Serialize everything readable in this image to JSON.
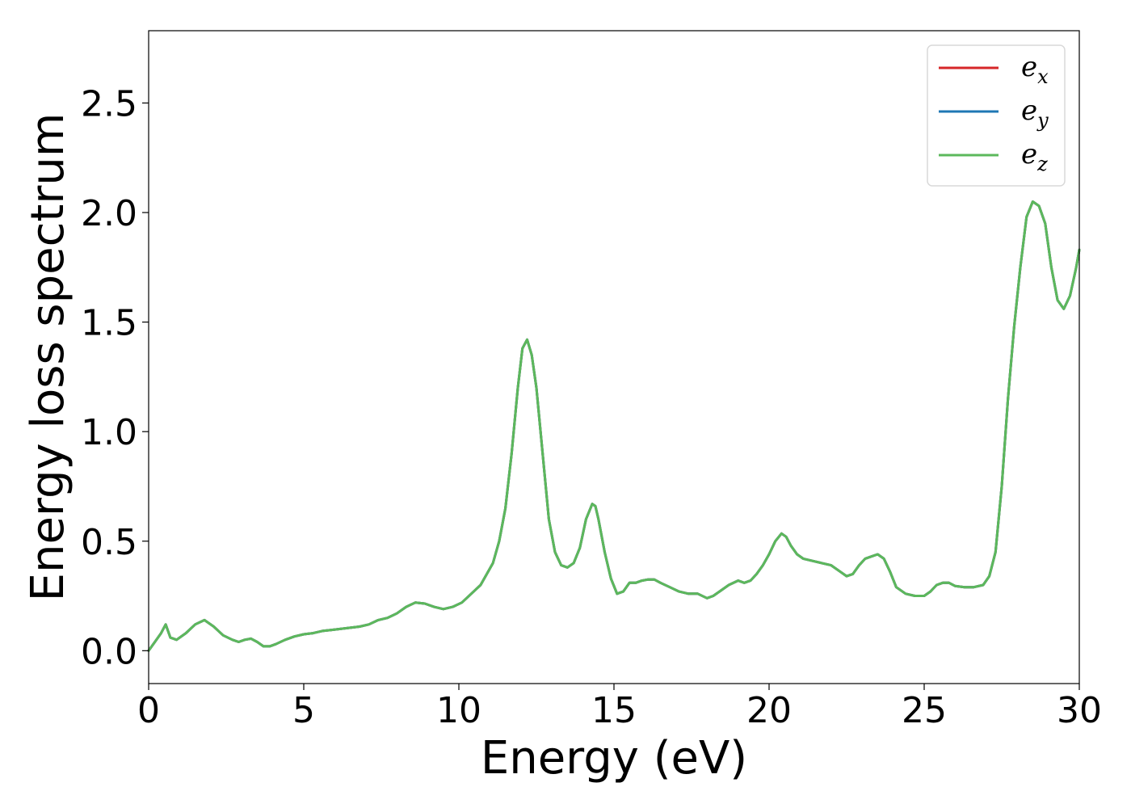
{
  "chart_data": {
    "type": "line",
    "title": "",
    "xlabel": "Energy (eV)",
    "ylabel": "Energy loss spectrum",
    "xlim": [
      0,
      30
    ],
    "ylim": [
      -0.15,
      2.83
    ],
    "xticks": [
      "0",
      "5",
      "10",
      "15",
      "20",
      "25",
      "30"
    ],
    "xtick_values": [
      0,
      5,
      10,
      15,
      20,
      25,
      30
    ],
    "yticks": [
      "0.0",
      "0.5",
      "1.0",
      "1.5",
      "2.0",
      "2.5"
    ],
    "ytick_values": [
      0.0,
      0.5,
      1.0,
      1.5,
      2.0,
      2.5
    ],
    "grid": false,
    "legend_placement": "top-right",
    "series": [
      {
        "name": "e_x",
        "label_main": "e",
        "label_sub": "x",
        "color": "#d62728",
        "x": [
          0,
          0.2,
          0.4,
          0.55,
          0.7,
          0.9,
          1.2,
          1.5,
          1.8,
          2.1,
          2.4,
          2.7,
          2.9,
          3.1,
          3.3,
          3.5,
          3.7,
          3.9,
          4.1,
          4.4,
          4.7,
          5.0,
          5.3,
          5.6,
          5.9,
          6.2,
          6.5,
          6.8,
          7.1,
          7.4,
          7.7,
          8.0,
          8.3,
          8.6,
          8.9,
          9.2,
          9.5,
          9.8,
          10.1,
          10.4,
          10.7,
          10.9,
          11.1,
          11.3,
          11.5,
          11.7,
          11.9,
          12.05,
          12.2,
          12.35,
          12.5,
          12.7,
          12.9,
          13.1,
          13.3,
          13.5,
          13.7,
          13.9,
          14.1,
          14.3,
          14.4,
          14.5,
          14.7,
          14.9,
          15.1,
          15.3,
          15.5,
          15.7,
          15.9,
          16.1,
          16.3,
          16.5,
          16.8,
          17.1,
          17.4,
          17.7,
          18.0,
          18.2,
          18.4,
          18.7,
          19.0,
          19.2,
          19.4,
          19.6,
          19.8,
          20.0,
          20.2,
          20.4,
          20.55,
          20.7,
          20.9,
          21.1,
          21.4,
          21.7,
          22.0,
          22.3,
          22.5,
          22.7,
          22.9,
          23.1,
          23.3,
          23.5,
          23.7,
          23.9,
          24.1,
          24.4,
          24.7,
          25.0,
          25.2,
          25.4,
          25.6,
          25.8,
          26.0,
          26.3,
          26.6,
          26.9,
          27.1,
          27.3,
          27.5,
          27.7,
          27.9,
          28.1,
          28.3,
          28.5,
          28.7,
          28.9,
          29.1,
          29.3,
          29.5,
          29.7,
          29.9,
          30.0
        ],
        "y": [
          0.0,
          0.04,
          0.08,
          0.12,
          0.06,
          0.05,
          0.08,
          0.12,
          0.14,
          0.11,
          0.07,
          0.05,
          0.04,
          0.05,
          0.055,
          0.04,
          0.02,
          0.02,
          0.03,
          0.05,
          0.065,
          0.075,
          0.08,
          0.09,
          0.095,
          0.1,
          0.105,
          0.11,
          0.12,
          0.14,
          0.15,
          0.17,
          0.2,
          0.22,
          0.215,
          0.2,
          0.19,
          0.2,
          0.22,
          0.26,
          0.3,
          0.35,
          0.4,
          0.5,
          0.65,
          0.9,
          1.2,
          1.38,
          1.42,
          1.35,
          1.2,
          0.9,
          0.6,
          0.45,
          0.39,
          0.38,
          0.4,
          0.47,
          0.6,
          0.67,
          0.66,
          0.6,
          0.45,
          0.33,
          0.26,
          0.27,
          0.31,
          0.31,
          0.32,
          0.325,
          0.325,
          0.31,
          0.29,
          0.27,
          0.26,
          0.26,
          0.24,
          0.25,
          0.27,
          0.3,
          0.32,
          0.31,
          0.32,
          0.35,
          0.39,
          0.44,
          0.5,
          0.535,
          0.52,
          0.48,
          0.44,
          0.42,
          0.41,
          0.4,
          0.39,
          0.36,
          0.34,
          0.35,
          0.39,
          0.42,
          0.43,
          0.44,
          0.42,
          0.36,
          0.29,
          0.26,
          0.25,
          0.25,
          0.27,
          0.3,
          0.31,
          0.31,
          0.295,
          0.29,
          0.29,
          0.3,
          0.34,
          0.45,
          0.75,
          1.15,
          1.48,
          1.75,
          1.98,
          2.05,
          2.03,
          1.95,
          1.75,
          1.6,
          1.56,
          1.62,
          1.75,
          1.83
        ]
      },
      {
        "name": "e_y",
        "label_main": "e",
        "label_sub": "y",
        "color": "#1f77b4",
        "x": [
          0,
          0.2,
          0.4,
          0.55,
          0.7,
          0.9,
          1.2,
          1.5,
          1.8,
          2.1,
          2.4,
          2.7,
          2.9,
          3.1,
          3.3,
          3.5,
          3.7,
          3.9,
          4.1,
          4.4,
          4.7,
          5.0,
          5.3,
          5.6,
          5.9,
          6.2,
          6.5,
          6.8,
          7.1,
          7.4,
          7.7,
          8.0,
          8.3,
          8.6,
          8.9,
          9.2,
          9.5,
          9.8,
          10.1,
          10.4,
          10.7,
          10.9,
          11.1,
          11.3,
          11.5,
          11.7,
          11.9,
          12.05,
          12.2,
          12.35,
          12.5,
          12.7,
          12.9,
          13.1,
          13.3,
          13.5,
          13.7,
          13.9,
          14.1,
          14.3,
          14.4,
          14.5,
          14.7,
          14.9,
          15.1,
          15.3,
          15.5,
          15.7,
          15.9,
          16.1,
          16.3,
          16.5,
          16.8,
          17.1,
          17.4,
          17.7,
          18.0,
          18.2,
          18.4,
          18.7,
          19.0,
          19.2,
          19.4,
          19.6,
          19.8,
          20.0,
          20.2,
          20.4,
          20.55,
          20.7,
          20.9,
          21.1,
          21.4,
          21.7,
          22.0,
          22.3,
          22.5,
          22.7,
          22.9,
          23.1,
          23.3,
          23.5,
          23.7,
          23.9,
          24.1,
          24.4,
          24.7,
          25.0,
          25.2,
          25.4,
          25.6,
          25.8,
          26.0,
          26.3,
          26.6,
          26.9,
          27.1,
          27.3,
          27.5,
          27.7,
          27.9,
          28.1,
          28.3,
          28.5,
          28.7,
          28.9,
          29.1,
          29.3,
          29.5,
          29.7,
          29.9,
          30.0
        ],
        "y": [
          0.0,
          0.04,
          0.08,
          0.12,
          0.06,
          0.05,
          0.08,
          0.12,
          0.14,
          0.11,
          0.07,
          0.05,
          0.04,
          0.05,
          0.055,
          0.04,
          0.02,
          0.02,
          0.03,
          0.05,
          0.065,
          0.075,
          0.08,
          0.09,
          0.095,
          0.1,
          0.105,
          0.11,
          0.12,
          0.14,
          0.15,
          0.17,
          0.2,
          0.22,
          0.215,
          0.2,
          0.19,
          0.2,
          0.22,
          0.26,
          0.3,
          0.35,
          0.4,
          0.5,
          0.65,
          0.9,
          1.2,
          1.38,
          1.42,
          1.35,
          1.2,
          0.9,
          0.6,
          0.45,
          0.39,
          0.38,
          0.4,
          0.47,
          0.6,
          0.67,
          0.66,
          0.6,
          0.45,
          0.33,
          0.26,
          0.27,
          0.31,
          0.31,
          0.32,
          0.325,
          0.325,
          0.31,
          0.29,
          0.27,
          0.26,
          0.26,
          0.24,
          0.25,
          0.27,
          0.3,
          0.32,
          0.31,
          0.32,
          0.35,
          0.39,
          0.44,
          0.5,
          0.535,
          0.52,
          0.48,
          0.44,
          0.42,
          0.41,
          0.4,
          0.39,
          0.36,
          0.34,
          0.35,
          0.39,
          0.42,
          0.43,
          0.44,
          0.42,
          0.36,
          0.29,
          0.26,
          0.25,
          0.25,
          0.27,
          0.3,
          0.31,
          0.31,
          0.295,
          0.29,
          0.29,
          0.3,
          0.34,
          0.45,
          0.75,
          1.15,
          1.48,
          1.75,
          1.98,
          2.05,
          2.03,
          1.95,
          1.75,
          1.6,
          1.56,
          1.62,
          1.75,
          1.83
        ]
      },
      {
        "name": "e_z",
        "label_main": "e",
        "label_sub": "z",
        "color": "#5cb85c",
        "x": [
          0,
          0.2,
          0.4,
          0.55,
          0.7,
          0.9,
          1.2,
          1.5,
          1.8,
          2.1,
          2.4,
          2.7,
          2.9,
          3.1,
          3.3,
          3.5,
          3.7,
          3.9,
          4.1,
          4.4,
          4.7,
          5.0,
          5.3,
          5.6,
          5.9,
          6.2,
          6.5,
          6.8,
          7.1,
          7.4,
          7.7,
          8.0,
          8.3,
          8.6,
          8.9,
          9.2,
          9.5,
          9.8,
          10.1,
          10.4,
          10.7,
          10.9,
          11.1,
          11.3,
          11.5,
          11.7,
          11.9,
          12.05,
          12.2,
          12.35,
          12.5,
          12.7,
          12.9,
          13.1,
          13.3,
          13.5,
          13.7,
          13.9,
          14.1,
          14.3,
          14.4,
          14.5,
          14.7,
          14.9,
          15.1,
          15.3,
          15.5,
          15.7,
          15.9,
          16.1,
          16.3,
          16.5,
          16.8,
          17.1,
          17.4,
          17.7,
          18.0,
          18.2,
          18.4,
          18.7,
          19.0,
          19.2,
          19.4,
          19.6,
          19.8,
          20.0,
          20.2,
          20.4,
          20.55,
          20.7,
          20.9,
          21.1,
          21.4,
          21.7,
          22.0,
          22.3,
          22.5,
          22.7,
          22.9,
          23.1,
          23.3,
          23.5,
          23.7,
          23.9,
          24.1,
          24.4,
          24.7,
          25.0,
          25.2,
          25.4,
          25.6,
          25.8,
          26.0,
          26.3,
          26.6,
          26.9,
          27.1,
          27.3,
          27.5,
          27.7,
          27.9,
          28.1,
          28.3,
          28.5,
          28.7,
          28.9,
          29.1,
          29.3,
          29.5,
          29.7,
          29.9,
          30.0
        ],
        "y": [
          0.0,
          0.04,
          0.08,
          0.12,
          0.06,
          0.05,
          0.08,
          0.12,
          0.14,
          0.11,
          0.07,
          0.05,
          0.04,
          0.05,
          0.055,
          0.04,
          0.02,
          0.02,
          0.03,
          0.05,
          0.065,
          0.075,
          0.08,
          0.09,
          0.095,
          0.1,
          0.105,
          0.11,
          0.12,
          0.14,
          0.15,
          0.17,
          0.2,
          0.22,
          0.215,
          0.2,
          0.19,
          0.2,
          0.22,
          0.26,
          0.3,
          0.35,
          0.4,
          0.5,
          0.65,
          0.9,
          1.2,
          1.38,
          1.42,
          1.35,
          1.2,
          0.9,
          0.6,
          0.45,
          0.39,
          0.38,
          0.4,
          0.47,
          0.6,
          0.67,
          0.66,
          0.6,
          0.45,
          0.33,
          0.26,
          0.27,
          0.31,
          0.31,
          0.32,
          0.325,
          0.325,
          0.31,
          0.29,
          0.27,
          0.26,
          0.26,
          0.24,
          0.25,
          0.27,
          0.3,
          0.32,
          0.31,
          0.32,
          0.35,
          0.39,
          0.44,
          0.5,
          0.535,
          0.52,
          0.48,
          0.44,
          0.42,
          0.41,
          0.4,
          0.39,
          0.36,
          0.34,
          0.35,
          0.39,
          0.42,
          0.43,
          0.44,
          0.42,
          0.36,
          0.29,
          0.26,
          0.25,
          0.25,
          0.27,
          0.3,
          0.31,
          0.31,
          0.295,
          0.29,
          0.29,
          0.3,
          0.34,
          0.45,
          0.75,
          1.15,
          1.48,
          1.75,
          1.98,
          2.05,
          2.03,
          1.95,
          1.75,
          1.6,
          1.56,
          1.62,
          1.75,
          1.83
        ]
      }
    ]
  }
}
